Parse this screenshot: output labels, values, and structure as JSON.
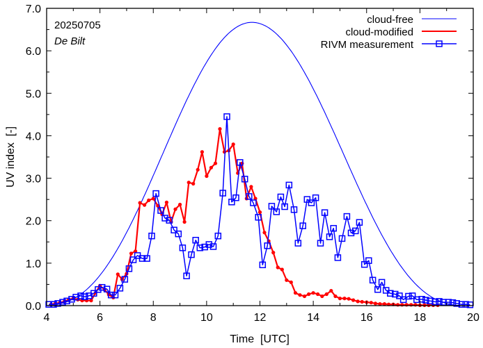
{
  "chart_data": {
    "type": "line",
    "title": "",
    "annotations": {
      "date": "20250705",
      "location": "De Bilt"
    },
    "xlabel": "Time  [UTC]",
    "ylabel": "UV index  [-]",
    "xlim": [
      4,
      20
    ],
    "ylim": [
      0,
      7
    ],
    "xticks": [
      4,
      6,
      8,
      10,
      12,
      14,
      16,
      18,
      20
    ],
    "xtick_labels": [
      "4",
      "6",
      "8",
      "10",
      "12",
      "14",
      "16",
      "18",
      "20"
    ],
    "yticks": [
      0,
      1,
      2,
      3,
      4,
      5,
      6,
      7
    ],
    "ytick_labels": [
      "0.0",
      "1.0",
      "2.0",
      "3.0",
      "4.0",
      "5.0",
      "6.0",
      "7.0"
    ],
    "grid": false,
    "legend_position": "top-right",
    "series": [
      {
        "name": "cloud-free",
        "color": "#0000ff",
        "style": "line",
        "model": {
          "peak_time": 11.7,
          "peak_value": 6.67,
          "sunrise_time": 3.8,
          "sunset_time": 19.8
        },
        "x": [
          4.0,
          4.5,
          5.0,
          5.5,
          6.0,
          6.5,
          7.0,
          7.5,
          8.0,
          8.5,
          9.0,
          9.5,
          10.0,
          10.5,
          11.0,
          11.5,
          11.7,
          12.0,
          12.5,
          13.0,
          13.5,
          14.0,
          14.5,
          15.0,
          15.5,
          16.0,
          16.5,
          17.0,
          17.5,
          18.0,
          18.5,
          19.0,
          19.5,
          20.0
        ],
        "y": [
          0.05,
          0.12,
          0.25,
          0.45,
          0.75,
          1.15,
          1.65,
          2.25,
          2.9,
          3.6,
          4.3,
          4.95,
          5.55,
          6.05,
          6.42,
          6.64,
          6.67,
          6.63,
          6.4,
          6.0,
          5.45,
          4.8,
          4.1,
          3.38,
          2.68,
          2.02,
          1.45,
          0.98,
          0.6,
          0.33,
          0.16,
          0.07,
          0.03,
          0.01
        ]
      },
      {
        "name": "cloud-modified",
        "color": "#ff0000",
        "style": "line-dots",
        "x": [
          4.17,
          4.33,
          4.5,
          4.67,
          4.83,
          5.0,
          5.17,
          5.33,
          5.5,
          5.67,
          5.83,
          6.0,
          6.17,
          6.33,
          6.5,
          6.67,
          6.83,
          7.0,
          7.17,
          7.33,
          7.5,
          7.67,
          7.83,
          8.0,
          8.17,
          8.33,
          8.5,
          8.67,
          8.83,
          9.0,
          9.17,
          9.33,
          9.5,
          9.67,
          9.83,
          10.0,
          10.17,
          10.33,
          10.5,
          10.67,
          10.83,
          11.0,
          11.17,
          11.33,
          11.5,
          11.67,
          11.83,
          12.0,
          12.17,
          12.33,
          12.5,
          12.67,
          12.83,
          13.0,
          13.17,
          13.33,
          13.5,
          13.67,
          13.83,
          14.0,
          14.17,
          14.33,
          14.5,
          14.67,
          14.83,
          15.0,
          15.17,
          15.33,
          15.5,
          15.67,
          15.83,
          16.0,
          16.17,
          16.33,
          16.5,
          16.67,
          16.83,
          17.0,
          17.17,
          17.33,
          17.5,
          17.67,
          17.83,
          18.0,
          18.17,
          18.33,
          18.5,
          18.67
        ],
        "y": [
          0.03,
          0.05,
          0.07,
          0.1,
          0.14,
          0.17,
          0.14,
          0.12,
          0.12,
          0.12,
          0.3,
          0.47,
          0.38,
          0.26,
          0.19,
          0.74,
          0.62,
          0.75,
          1.23,
          1.28,
          2.42,
          2.37,
          2.48,
          2.52,
          2.35,
          2.15,
          2.43,
          1.97,
          2.27,
          2.38,
          1.97,
          2.9,
          2.87,
          3.2,
          3.62,
          3.05,
          3.25,
          3.35,
          4.16,
          3.62,
          3.65,
          3.8,
          3.12,
          3.35,
          2.52,
          2.8,
          2.52,
          2.2,
          1.72,
          1.52,
          1.25,
          0.9,
          0.85,
          0.6,
          0.55,
          0.3,
          0.25,
          0.22,
          0.27,
          0.3,
          0.27,
          0.22,
          0.27,
          0.35,
          0.22,
          0.17,
          0.17,
          0.16,
          0.13,
          0.1,
          0.09,
          0.08,
          0.07,
          0.05,
          0.04,
          0.04,
          0.03,
          0.03,
          0.02,
          0.02,
          0.02,
          0.02,
          0.02,
          0.01,
          0.01,
          0.01,
          0.01,
          0.01
        ]
      },
      {
        "name": "RIVM measurement",
        "color": "#0000ff",
        "style": "line-squares",
        "x": [
          4.08,
          4.26,
          4.42,
          4.6,
          4.76,
          4.94,
          5.1,
          5.28,
          5.43,
          5.59,
          5.77,
          5.93,
          6.08,
          6.26,
          6.42,
          6.57,
          6.75,
          6.93,
          7.09,
          7.25,
          7.41,
          7.59,
          7.76,
          7.94,
          8.1,
          8.28,
          8.44,
          8.6,
          8.78,
          8.94,
          9.1,
          9.25,
          9.43,
          9.59,
          9.75,
          9.93,
          10.09,
          10.25,
          10.43,
          10.61,
          10.76,
          10.94,
          11.1,
          11.25,
          11.43,
          11.59,
          11.75,
          11.94,
          12.1,
          12.28,
          12.44,
          12.62,
          12.78,
          12.93,
          13.09,
          13.28,
          13.43,
          13.61,
          13.77,
          13.93,
          14.09,
          14.27,
          14.43,
          14.61,
          14.76,
          14.92,
          15.08,
          15.26,
          15.42,
          15.58,
          15.73,
          15.92,
          16.08,
          16.23,
          16.42,
          16.57,
          16.73,
          16.89,
          17.07,
          17.23,
          17.38,
          17.57,
          17.72,
          17.88,
          18.07,
          18.22,
          18.38,
          18.57,
          18.72,
          18.88,
          19.07,
          19.23,
          19.38,
          19.57,
          19.72,
          19.88
        ],
        "y": [
          0.03,
          0.03,
          0.05,
          0.08,
          0.11,
          0.15,
          0.2,
          0.23,
          0.21,
          0.23,
          0.29,
          0.38,
          0.43,
          0.39,
          0.25,
          0.25,
          0.41,
          0.62,
          0.87,
          1.08,
          1.18,
          1.11,
          1.11,
          1.64,
          2.64,
          2.24,
          2.06,
          2.01,
          1.78,
          1.69,
          1.36,
          0.7,
          1.2,
          1.54,
          1.36,
          1.38,
          1.44,
          1.39,
          1.64,
          2.65,
          4.45,
          2.44,
          2.54,
          3.37,
          2.98,
          2.57,
          2.42,
          2.08,
          0.96,
          1.41,
          2.34,
          2.21,
          2.56,
          2.33,
          2.84,
          2.26,
          1.47,
          1.88,
          2.5,
          2.42,
          2.54,
          1.47,
          2.19,
          1.62,
          1.82,
          1.13,
          1.58,
          2.1,
          1.71,
          1.76,
          1.96,
          0.97,
          1.06,
          0.6,
          0.38,
          0.55,
          0.36,
          0.29,
          0.27,
          0.23,
          0.14,
          0.22,
          0.23,
          0.14,
          0.15,
          0.13,
          0.11,
          0.09,
          0.1,
          0.08,
          0.08,
          0.07,
          0.05,
          0.03,
          0.03,
          0.02
        ]
      }
    ]
  }
}
